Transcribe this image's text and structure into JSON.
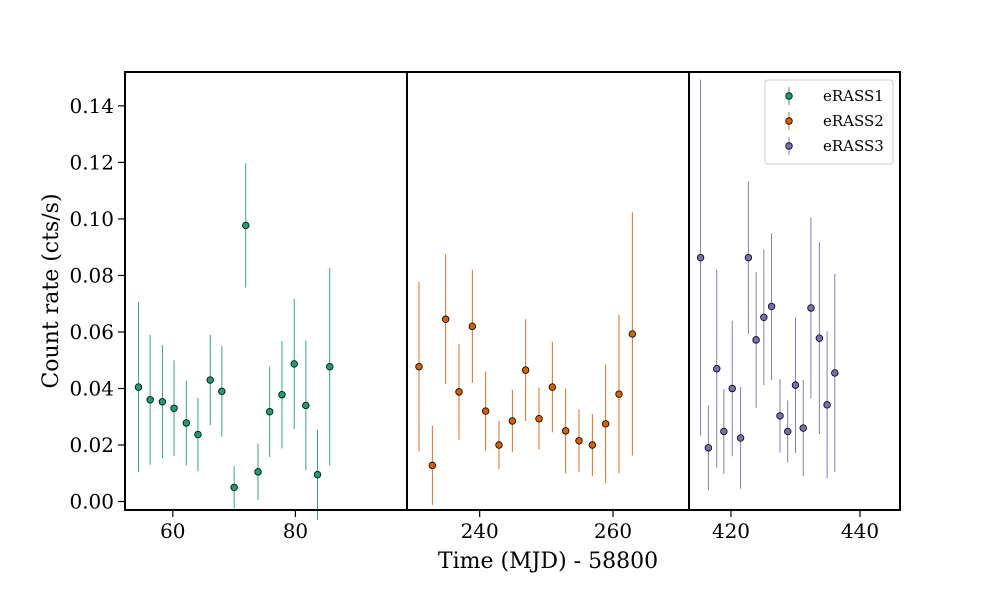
{
  "chart_data": {
    "type": "scatter",
    "error_bars": true,
    "title": "",
    "xlabel": "Time (MJD) - 58800",
    "ylabel": "Count rate (cts/s)",
    "ylim": [
      -0.003,
      0.152
    ],
    "yticks": [
      0.0,
      0.02,
      0.04,
      0.06,
      0.08,
      0.1,
      0.12,
      0.14
    ],
    "ytick_labels": [
      "0.00",
      "0.02",
      "0.04",
      "0.06",
      "0.08",
      "0.10",
      "0.12",
      "0.14"
    ],
    "legend": {
      "placement": "top-right",
      "entries": [
        "eRASS1",
        "eRASS2",
        "eRASS3"
      ]
    },
    "grid": false,
    "panels": [
      {
        "series": "eRASS1",
        "color": "#1b9e77",
        "xlim": [
          52.2,
          98.2
        ],
        "xticks": [
          60,
          80
        ],
        "xtick_labels": [
          "60",
          "80"
        ],
        "points": [
          {
            "x": 54.4,
            "y": 0.0405,
            "err": 0.03
          },
          {
            "x": 56.3,
            "y": 0.036,
            "err": 0.023
          },
          {
            "x": 58.3,
            "y": 0.0353,
            "err": 0.02
          },
          {
            "x": 60.2,
            "y": 0.033,
            "err": 0.017
          },
          {
            "x": 62.2,
            "y": 0.0278,
            "err": 0.015
          },
          {
            "x": 64.1,
            "y": 0.0237,
            "err": 0.013
          },
          {
            "x": 66.1,
            "y": 0.043,
            "err": 0.016
          },
          {
            "x": 68.0,
            "y": 0.039,
            "err": 0.016
          },
          {
            "x": 70.0,
            "y": 0.005,
            "err": 0.0075
          },
          {
            "x": 71.9,
            "y": 0.0977,
            "err": 0.022
          },
          {
            "x": 73.9,
            "y": 0.0105,
            "err": 0.01
          },
          {
            "x": 75.8,
            "y": 0.0318,
            "err": 0.016
          },
          {
            "x": 77.8,
            "y": 0.0378,
            "err": 0.019
          },
          {
            "x": 79.8,
            "y": 0.0487,
            "err": 0.023
          },
          {
            "x": 81.7,
            "y": 0.034,
            "err": 0.023
          },
          {
            "x": 83.6,
            "y": 0.0095,
            "err": 0.016
          },
          {
            "x": 85.6,
            "y": 0.0477,
            "err": 0.035
          }
        ]
      },
      {
        "series": "eRASS2",
        "color": "#d95f02",
        "xlim": [
          229.1,
          271.4
        ],
        "xticks": [
          240,
          260
        ],
        "xtick_labels": [
          "240",
          "260"
        ],
        "points": [
          {
            "x": 230.9,
            "y": 0.0477,
            "err": 0.03
          },
          {
            "x": 232.9,
            "y": 0.0128,
            "err": 0.014
          },
          {
            "x": 234.9,
            "y": 0.0645,
            "err": 0.023
          },
          {
            "x": 236.9,
            "y": 0.0388,
            "err": 0.017
          },
          {
            "x": 238.9,
            "y": 0.062,
            "err": 0.02
          },
          {
            "x": 240.9,
            "y": 0.032,
            "err": 0.014
          },
          {
            "x": 242.9,
            "y": 0.02,
            "err": 0.0085
          },
          {
            "x": 244.9,
            "y": 0.0285,
            "err": 0.011
          },
          {
            "x": 246.9,
            "y": 0.0465,
            "err": 0.018
          },
          {
            "x": 248.9,
            "y": 0.0293,
            "err": 0.011
          },
          {
            "x": 250.9,
            "y": 0.0405,
            "err": 0.016
          },
          {
            "x": 252.9,
            "y": 0.025,
            "err": 0.015
          },
          {
            "x": 254.9,
            "y": 0.0215,
            "err": 0.011
          },
          {
            "x": 256.9,
            "y": 0.02,
            "err": 0.011
          },
          {
            "x": 258.9,
            "y": 0.0275,
            "err": 0.021
          },
          {
            "x": 260.9,
            "y": 0.038,
            "err": 0.028
          },
          {
            "x": 262.9,
            "y": 0.0593,
            "err": 0.043
          }
        ]
      },
      {
        "series": "eRASS3",
        "color": "#7570b3",
        "xlim": [
          413.5,
          446.2
        ],
        "xticks": [
          420,
          440
        ],
        "xtick_labels": [
          "420",
          "440"
        ],
        "points": [
          {
            "x": 415.3,
            "y": 0.0863,
            "err": 0.063
          },
          {
            "x": 416.5,
            "y": 0.019,
            "err": 0.015
          },
          {
            "x": 417.8,
            "y": 0.047,
            "err": 0.035
          },
          {
            "x": 418.9,
            "y": 0.0248,
            "err": 0.015
          },
          {
            "x": 420.2,
            "y": 0.04,
            "err": 0.024
          },
          {
            "x": 421.5,
            "y": 0.0225,
            "err": 0.018
          },
          {
            "x": 422.7,
            "y": 0.0863,
            "err": 0.027
          },
          {
            "x": 423.9,
            "y": 0.0572,
            "err": 0.024
          },
          {
            "x": 425.1,
            "y": 0.0652,
            "err": 0.024
          },
          {
            "x": 426.3,
            "y": 0.069,
            "err": 0.026
          },
          {
            "x": 427.6,
            "y": 0.0303,
            "err": 0.013
          },
          {
            "x": 428.8,
            "y": 0.0248,
            "err": 0.011
          },
          {
            "x": 430.0,
            "y": 0.0412,
            "err": 0.024
          },
          {
            "x": 431.2,
            "y": 0.026,
            "err": 0.017
          },
          {
            "x": 432.4,
            "y": 0.0685,
            "err": 0.032
          },
          {
            "x": 433.7,
            "y": 0.0578,
            "err": 0.034
          },
          {
            "x": 434.9,
            "y": 0.0342,
            "err": 0.026
          },
          {
            "x": 436.1,
            "y": 0.0455,
            "err": 0.035
          }
        ]
      }
    ]
  }
}
